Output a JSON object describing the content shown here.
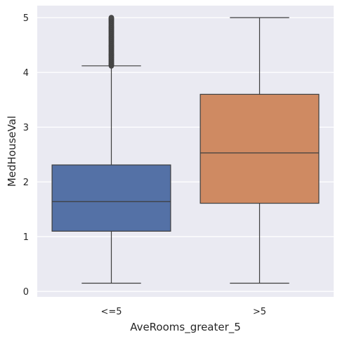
{
  "chart_data": {
    "type": "boxplot",
    "xlabel": "AveRooms_greater_5",
    "ylabel": "MedHouseVal",
    "categories": [
      "<=5",
      ">5"
    ],
    "ylim": [
      -0.1,
      5.22
    ],
    "yticks": [
      0,
      1,
      2,
      3,
      4,
      5
    ],
    "grid": true,
    "boxes": [
      {
        "category": "<=5",
        "color": "#5471a6",
        "whisker_low": 0.15,
        "q1": 1.1,
        "median": 1.64,
        "q3": 2.31,
        "whisker_high": 4.12,
        "outliers_from": 4.12,
        "outliers_to": 5.0
      },
      {
        "category": ">5",
        "color": "#cf8a62",
        "whisker_low": 0.15,
        "q1": 1.61,
        "median": 2.53,
        "q3": 3.6,
        "whisker_high": 5.0
      }
    ]
  }
}
